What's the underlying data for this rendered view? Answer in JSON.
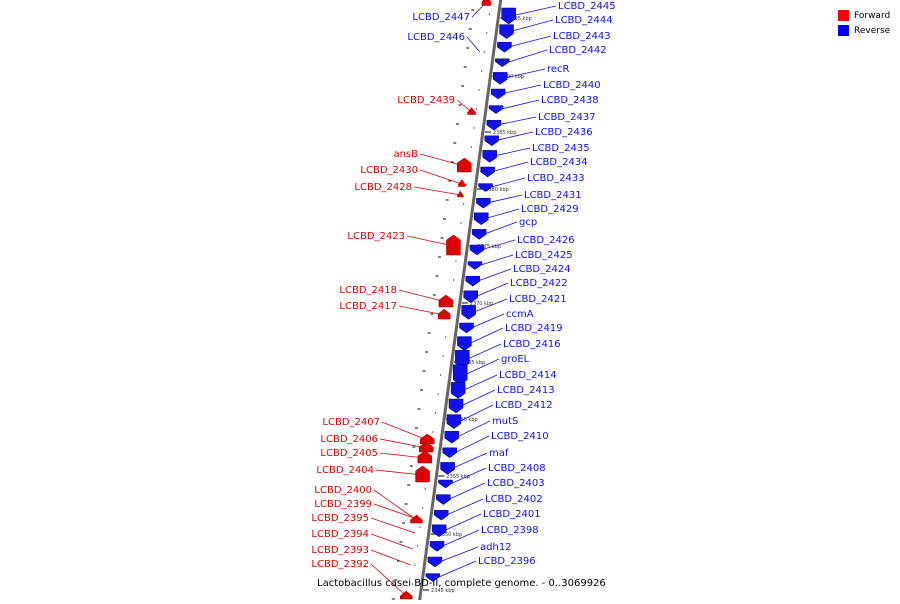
{
  "legend": {
    "forward": {
      "label": "Forward",
      "color": "#ff0000"
    },
    "reverse": {
      "label": "Reverse",
      "color": "#0000ff"
    }
  },
  "caption": "Lactobacillus casei BD-II, complete genome. - 0..3069926",
  "colors": {
    "forward": "#dd0000",
    "reverse": "#1010ee",
    "backbone": "#888888",
    "leader": "#1010ee"
  },
  "scale_labels": [
    "2395 kbp",
    "2390 kbp",
    "2385 kbp",
    "2380 kbp",
    "2375 kbp",
    "2370 kbp",
    "2365 kbp",
    "2360 kbp",
    "2355 kbp",
    "2350 kbp",
    "2345 kbp"
  ],
  "forward_genes": [
    "LCBD_2447",
    "LCBD_2446",
    "LCBD_2439",
    "ansB",
    "LCBD_2430",
    "LCBD_2428",
    "LCBD_2423",
    "LCBD_2418",
    "LCBD_2417",
    "LCBD_2407",
    "LCBD_2406",
    "LCBD_2405",
    "LCBD_2404",
    "LCBD_2400",
    "LCBD_2399",
    "LCBD_2395",
    "LCBD_2394",
    "LCBD_2393",
    "LCBD_2392"
  ],
  "reverse_genes": [
    "LCBD_2445",
    "LCBD_2444",
    "LCBD_2443",
    "LCBD_2442",
    "recR",
    "LCBD_2440",
    "LCBD_2438",
    "LCBD_2437",
    "LCBD_2436",
    "LCBD_2435",
    "LCBD_2434",
    "LCBD_2433",
    "LCBD_2431",
    "LCBD_2429",
    "gcp",
    "LCBD_2426",
    "LCBD_2425",
    "LCBD_2424",
    "LCBD_2422",
    "LCBD_2421",
    "ccmA",
    "LCBD_2419",
    "LCBD_2416",
    "groEL",
    "LCBD_2414",
    "LCBD_2413",
    "LCBD_2412",
    "mutS",
    "LCBD_2410",
    "maf",
    "LCBD_2408",
    "LCBD_2403",
    "LCBD_2402",
    "LCBD_2401",
    "LCBD_2398",
    "adh12",
    "LCBD_2396"
  ]
}
